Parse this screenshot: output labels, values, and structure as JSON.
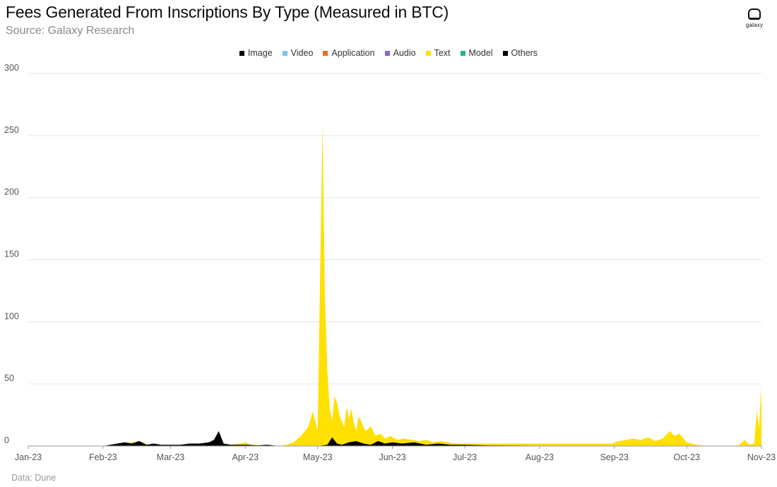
{
  "header": {
    "title": "Fees Generated From Inscriptions By Type (Measured in BTC)",
    "subtitle": "Source: Galaxy Research"
  },
  "brand": {
    "name": "galaxy",
    "icon": "galaxy-logo-icon"
  },
  "footer": {
    "source": "Data: Dune"
  },
  "colors": {
    "Image": "#000000",
    "Video": "#7fc4f0",
    "Application": "#f26b1d",
    "Audio": "#8a63d2",
    "Text": "#ffe000",
    "Model": "#21b78a",
    "Others": "#000000",
    "grid": "#e6e6e6",
    "axis": "#9a9a9a"
  },
  "chart_data": {
    "type": "area",
    "stacked": true,
    "title": "Fees Generated From Inscriptions By Type (Measured in BTC)",
    "ylim": [
      0,
      300
    ],
    "yticks": [
      0,
      50,
      100,
      150,
      200,
      250,
      300
    ],
    "xlim": [
      "2023-01-01",
      "2023-11-01"
    ],
    "xticks": [
      {
        "date": "2023-01-01",
        "label": "Jan-23"
      },
      {
        "date": "2023-02-01",
        "label": "Feb-23"
      },
      {
        "date": "2023-03-01",
        "label": "Mar-23"
      },
      {
        "date": "2023-04-01",
        "label": "Apr-23"
      },
      {
        "date": "2023-05-01",
        "label": "May-23"
      },
      {
        "date": "2023-06-01",
        "label": "Jun-23"
      },
      {
        "date": "2023-07-01",
        "label": "Jul-23"
      },
      {
        "date": "2023-08-01",
        "label": "Aug-23"
      },
      {
        "date": "2023-09-01",
        "label": "Sep-23"
      },
      {
        "date": "2023-10-01",
        "label": "Oct-23"
      },
      {
        "date": "2023-11-01",
        "label": "Nov-23"
      }
    ],
    "grid": true,
    "legend_position": "top-center",
    "legend": [
      "Image",
      "Video",
      "Application",
      "Audio",
      "Text",
      "Model",
      "Others"
    ],
    "series": [
      {
        "name": "Image",
        "x": [
          "2023-01-01",
          "2023-01-20",
          "2023-02-01",
          "2023-02-04",
          "2023-02-07",
          "2023-02-10",
          "2023-02-13",
          "2023-02-16",
          "2023-02-19",
          "2023-02-22",
          "2023-02-25",
          "2023-03-01",
          "2023-03-05",
          "2023-03-09",
          "2023-03-13",
          "2023-03-17",
          "2023-03-19",
          "2023-03-21",
          "2023-03-23",
          "2023-03-26",
          "2023-03-29",
          "2023-04-02",
          "2023-04-06",
          "2023-04-10",
          "2023-04-15",
          "2023-04-20",
          "2023-04-25",
          "2023-04-28",
          "2023-05-01",
          "2023-05-05",
          "2023-05-07",
          "2023-05-09",
          "2023-05-11",
          "2023-05-14",
          "2023-05-17",
          "2023-05-20",
          "2023-05-23",
          "2023-05-26",
          "2023-05-29",
          "2023-06-01",
          "2023-06-05",
          "2023-06-10",
          "2023-06-15",
          "2023-06-20",
          "2023-06-25",
          "2023-07-01",
          "2023-07-10",
          "2023-08-01",
          "2023-09-01",
          "2023-09-20",
          "2023-10-01",
          "2023-11-01"
        ],
        "y": [
          0,
          0,
          0,
          1,
          2,
          3,
          2,
          4,
          1,
          2,
          1,
          1,
          1,
          2,
          2,
          3,
          5,
          12,
          2,
          1,
          1,
          1,
          0.5,
          1,
          0,
          0,
          0,
          0,
          0,
          1,
          7,
          2,
          1,
          3,
          4,
          2,
          1,
          4,
          2,
          3,
          2,
          3,
          1,
          2,
          1,
          1,
          0.5,
          0.3,
          0.3,
          0.3,
          0.2,
          0.3
        ]
      },
      {
        "name": "Text",
        "x": [
          "2023-01-01",
          "2023-01-20",
          "2023-02-01",
          "2023-02-07",
          "2023-02-10",
          "2023-02-13",
          "2023-02-16",
          "2023-02-20",
          "2023-02-25",
          "2023-03-01",
          "2023-03-10",
          "2023-03-21",
          "2023-03-30",
          "2023-04-01",
          "2023-04-03",
          "2023-04-06",
          "2023-04-10",
          "2023-04-15",
          "2023-04-18",
          "2023-04-21",
          "2023-04-24",
          "2023-04-27",
          "2023-04-29",
          "2023-05-01",
          "2023-05-03",
          "2023-05-04",
          "2023-05-05",
          "2023-05-06",
          "2023-05-07",
          "2023-05-08",
          "2023-05-09",
          "2023-05-10",
          "2023-05-11",
          "2023-05-12",
          "2023-05-13",
          "2023-05-14",
          "2023-05-15",
          "2023-05-16",
          "2023-05-17",
          "2023-05-18",
          "2023-05-19",
          "2023-05-20",
          "2023-05-21",
          "2023-05-23",
          "2023-05-25",
          "2023-05-27",
          "2023-05-29",
          "2023-05-31",
          "2023-06-03",
          "2023-06-06",
          "2023-06-09",
          "2023-06-12",
          "2023-06-15",
          "2023-06-18",
          "2023-06-21",
          "2023-06-24",
          "2023-06-27",
          "2023-06-30",
          "2023-07-05",
          "2023-07-10",
          "2023-07-15",
          "2023-07-20",
          "2023-07-25",
          "2023-07-30",
          "2023-08-05",
          "2023-08-10",
          "2023-08-15",
          "2023-08-20",
          "2023-08-25",
          "2023-08-31",
          "2023-09-03",
          "2023-09-06",
          "2023-09-09",
          "2023-09-12",
          "2023-09-15",
          "2023-09-18",
          "2023-09-21",
          "2023-09-24",
          "2023-09-26",
          "2023-09-28",
          "2023-10-01",
          "2023-10-05",
          "2023-10-10",
          "2023-10-15",
          "2023-10-18",
          "2023-10-21",
          "2023-10-23",
          "2023-10-25",
          "2023-10-27",
          "2023-10-29",
          "2023-10-30",
          "2023-10-31",
          "2023-11-01"
        ],
        "y": [
          0,
          0,
          0,
          1,
          2,
          3,
          4,
          1,
          0,
          1,
          0,
          0,
          2,
          3,
          1,
          1,
          0,
          0,
          1,
          3,
          8,
          15,
          28,
          12,
          258,
          120,
          60,
          30,
          20,
          40,
          35,
          25,
          20,
          15,
          32,
          22,
          30,
          18,
          12,
          24,
          20,
          15,
          12,
          16,
          8,
          10,
          6,
          8,
          5,
          6,
          5,
          4,
          5,
          3,
          4,
          3,
          2,
          2,
          2,
          2,
          2,
          2,
          2,
          2,
          2,
          2,
          2,
          2,
          2,
          2,
          4,
          5,
          6,
          5,
          7,
          4,
          6,
          12,
          8,
          10,
          3,
          1,
          0,
          0,
          0,
          0,
          1,
          5,
          1,
          2,
          28,
          15,
          48
        ]
      }
    ]
  }
}
